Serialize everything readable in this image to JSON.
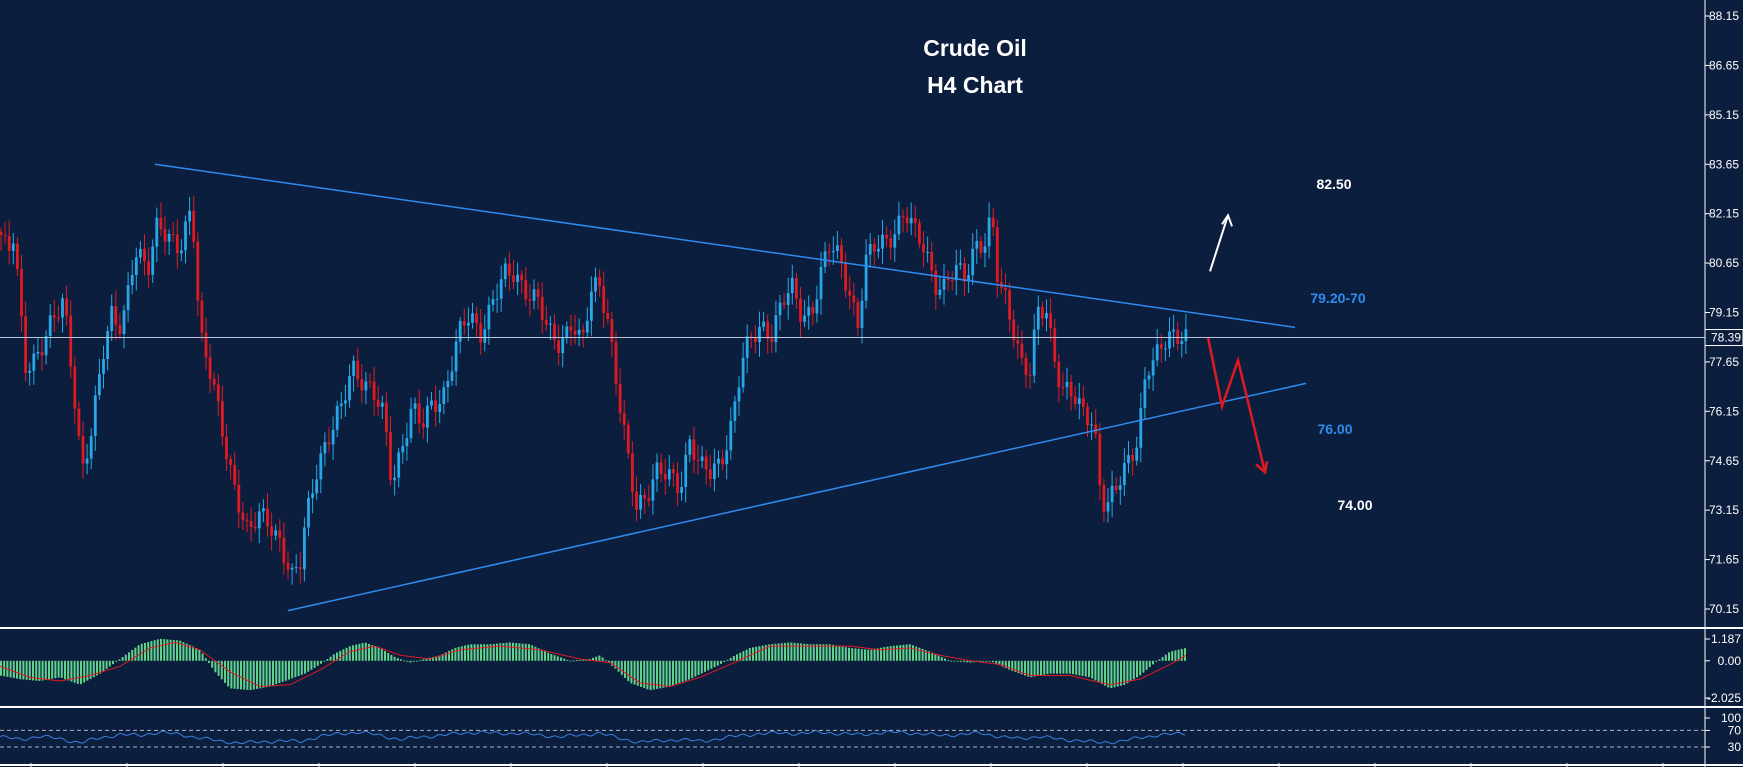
{
  "title": "Crude Oil",
  "subtitle": "H4 Chart",
  "colors": {
    "background": "#0c1e3d",
    "bull": "#26a7e8",
    "bear": "#e01a22",
    "trendline": "#2e8cf0",
    "macd_hist": "#5fd38a",
    "signal": "#e01a22",
    "rsi": "#3a7ee0",
    "axis_text": "#ffffff",
    "price_box": "#0c1e3d"
  },
  "chart_data": [
    {
      "type": "candlestick",
      "title": "Crude Oil",
      "subtitle": "H4 Chart",
      "ylim": [
        69.5,
        88.6
      ],
      "y_ticks": [
        "88.15",
        "86.65",
        "85.15",
        "83.65",
        "82.15",
        "80.65",
        "79.15",
        "77.65",
        "76.15",
        "74.65",
        "73.15",
        "71.65",
        "70.15"
      ],
      "current_price": "78.39",
      "close_path": [
        [
          0,
          81.6
        ],
        [
          8,
          80.8
        ],
        [
          14,
          81.4
        ],
        [
          25,
          77.6
        ],
        [
          40,
          78.0
        ],
        [
          55,
          78.9
        ],
        [
          64,
          79.6
        ],
        [
          72,
          77.5
        ],
        [
          82,
          74.3
        ],
        [
          92,
          75.4
        ],
        [
          102,
          77.8
        ],
        [
          112,
          79.3
        ],
        [
          122,
          78.7
        ],
        [
          135,
          80.8
        ],
        [
          148,
          80.6
        ],
        [
          158,
          82.1
        ],
        [
          168,
          81.3
        ],
        [
          180,
          80.9
        ],
        [
          192,
          82.6
        ],
        [
          200,
          78.6
        ],
        [
          210,
          77.3
        ],
        [
          220,
          75.8
        ],
        [
          228,
          74.7
        ],
        [
          238,
          73.6
        ],
        [
          248,
          72.4
        ],
        [
          260,
          72.9
        ],
        [
          270,
          72.8
        ],
        [
          280,
          72.3
        ],
        [
          292,
          71.0
        ],
        [
          300,
          71.4
        ],
        [
          306,
          72.9
        ],
        [
          318,
          74.7
        ],
        [
          330,
          75.4
        ],
        [
          342,
          76.2
        ],
        [
          352,
          77.6
        ],
        [
          362,
          77.2
        ],
        [
          372,
          76.7
        ],
        [
          384,
          75.9
        ],
        [
          392,
          74.0
        ],
        [
          402,
          75.2
        ],
        [
          412,
          76.2
        ],
        [
          422,
          75.6
        ],
        [
          432,
          76.4
        ],
        [
          445,
          76.8
        ],
        [
          458,
          78.3
        ],
        [
          470,
          79.1
        ],
        [
          480,
          78.6
        ],
        [
          492,
          79.4
        ],
        [
          505,
          80.2
        ],
        [
          515,
          80.4
        ],
        [
          526,
          79.9
        ],
        [
          538,
          79.4
        ],
        [
          548,
          78.5
        ],
        [
          560,
          78.3
        ],
        [
          572,
          78.9
        ],
        [
          582,
          78.0
        ],
        [
          592,
          79.9
        ],
        [
          600,
          80.1
        ],
        [
          608,
          79.0
        ],
        [
          618,
          76.6
        ],
        [
          628,
          74.6
        ],
        [
          636,
          73.3
        ],
        [
          646,
          73.7
        ],
        [
          656,
          74.3
        ],
        [
          668,
          74.1
        ],
        [
          680,
          73.9
        ],
        [
          690,
          75.4
        ],
        [
          700,
          74.4
        ],
        [
          710,
          74.2
        ],
        [
          720,
          74.6
        ],
        [
          732,
          75.9
        ],
        [
          742,
          77.6
        ],
        [
          752,
          78.3
        ],
        [
          762,
          78.8
        ],
        [
          772,
          78.6
        ],
        [
          782,
          79.4
        ],
        [
          792,
          79.8
        ],
        [
          802,
          79.1
        ],
        [
          812,
          79.3
        ],
        [
          822,
          80.4
        ],
        [
          830,
          81.1
        ],
        [
          840,
          80.8
        ],
        [
          850,
          79.8
        ],
        [
          858,
          78.8
        ],
        [
          866,
          80.6
        ],
        [
          875,
          81.1
        ],
        [
          885,
          81.4
        ],
        [
          895,
          81.7
        ],
        [
          905,
          82.1
        ],
        [
          915,
          81.5
        ],
        [
          925,
          81.2
        ],
        [
          935,
          80.1
        ],
        [
          945,
          79.8
        ],
        [
          955,
          80.4
        ],
        [
          965,
          80.3
        ],
        [
          975,
          81.3
        ],
        [
          985,
          81.2
        ],
        [
          992,
          81.9
        ],
        [
          998,
          80.0
        ],
        [
          1006,
          79.6
        ],
        [
          1014,
          78.7
        ],
        [
          1022,
          77.6
        ],
        [
          1030,
          77.2
        ],
        [
          1038,
          79.1
        ],
        [
          1046,
          79.3
        ],
        [
          1054,
          78.0
        ],
        [
          1062,
          76.8
        ],
        [
          1070,
          76.7
        ],
        [
          1078,
          76.2
        ],
        [
          1086,
          76.1
        ],
        [
          1094,
          75.9
        ],
        [
          1100,
          74.0
        ],
        [
          1106,
          73.1
        ],
        [
          1114,
          73.6
        ],
        [
          1122,
          74.1
        ],
        [
          1130,
          74.9
        ],
        [
          1138,
          75.4
        ],
        [
          1146,
          77.4
        ],
        [
          1154,
          77.5
        ],
        [
          1162,
          78.1
        ],
        [
          1172,
          78.6
        ],
        [
          1180,
          78.6
        ],
        [
          1186,
          78.4
        ]
      ],
      "trendlines": [
        {
          "name": "resistance",
          "from": [
            155,
            83.65
          ],
          "to": [
            1295,
            78.7
          ]
        },
        {
          "name": "support",
          "from": [
            288,
            70.1
          ],
          "to": [
            1306,
            77.0
          ]
        }
      ],
      "levels": [
        {
          "label": "82.50",
          "color": "#ffffff"
        },
        {
          "label": "79.20-70",
          "color": "#2e8cf0"
        },
        {
          "label": "76.00",
          "color": "#2e8cf0"
        },
        {
          "label": "74.00",
          "color": "#ffffff"
        }
      ],
      "projection": {
        "bullish_arrow": {
          "from": [
            1210,
            80.4
          ],
          "to": [
            1228,
            82.1
          ]
        },
        "bearish_path": [
          [
            1208,
            78.4
          ],
          [
            1222,
            76.3
          ],
          [
            1238,
            77.7
          ],
          [
            1265,
            74.3
          ]
        ]
      }
    },
    {
      "type": "bar",
      "name": "MACD",
      "ylim": [
        -2.4,
        1.6
      ],
      "y_ticks": [
        "1.187",
        "0.00",
        "-2.025"
      ],
      "histogram_path": [
        [
          0,
          -0.8
        ],
        [
          20,
          -1.0
        ],
        [
          40,
          -1.1
        ],
        [
          60,
          -0.9
        ],
        [
          80,
          -1.3
        ],
        [
          100,
          -0.7
        ],
        [
          120,
          0.1
        ],
        [
          140,
          0.9
        ],
        [
          160,
          1.2
        ],
        [
          180,
          1.1
        ],
        [
          200,
          0.6
        ],
        [
          215,
          -0.6
        ],
        [
          230,
          -1.5
        ],
        [
          250,
          -1.6
        ],
        [
          270,
          -1.4
        ],
        [
          290,
          -1.0
        ],
        [
          305,
          -0.7
        ],
        [
          320,
          -0.2
        ],
        [
          335,
          0.4
        ],
        [
          350,
          0.8
        ],
        [
          365,
          1.0
        ],
        [
          380,
          0.7
        ],
        [
          395,
          0.2
        ],
        [
          410,
          -0.1
        ],
        [
          425,
          0.1
        ],
        [
          440,
          0.3
        ],
        [
          455,
          0.7
        ],
        [
          470,
          0.9
        ],
        [
          490,
          0.9
        ],
        [
          510,
          1.0
        ],
        [
          530,
          0.9
        ],
        [
          550,
          0.4
        ],
        [
          570,
          0.0
        ],
        [
          590,
          0.1
        ],
        [
          600,
          0.3
        ],
        [
          615,
          -0.4
        ],
        [
          630,
          -1.2
        ],
        [
          650,
          -1.6
        ],
        [
          670,
          -1.4
        ],
        [
          690,
          -1.0
        ],
        [
          705,
          -0.6
        ],
        [
          720,
          -0.2
        ],
        [
          735,
          0.3
        ],
        [
          750,
          0.7
        ],
        [
          770,
          0.9
        ],
        [
          790,
          1.0
        ],
        [
          810,
          0.9
        ],
        [
          830,
          0.9
        ],
        [
          850,
          0.7
        ],
        [
          870,
          0.6
        ],
        [
          890,
          0.8
        ],
        [
          910,
          0.9
        ],
        [
          930,
          0.5
        ],
        [
          950,
          0.0
        ],
        [
          970,
          -0.1
        ],
        [
          990,
          0.0
        ],
        [
          1010,
          -0.5
        ],
        [
          1030,
          -0.9
        ],
        [
          1050,
          -0.7
        ],
        [
          1070,
          -0.7
        ],
        [
          1090,
          -0.9
        ],
        [
          1110,
          -1.5
        ],
        [
          1125,
          -1.3
        ],
        [
          1140,
          -0.8
        ],
        [
          1155,
          -0.1
        ],
        [
          1170,
          0.5
        ],
        [
          1186,
          0.7
        ]
      ],
      "signal_path": [
        [
          0,
          -0.3
        ],
        [
          30,
          -0.9
        ],
        [
          60,
          -1.1
        ],
        [
          90,
          -0.8
        ],
        [
          120,
          -0.3
        ],
        [
          150,
          0.7
        ],
        [
          175,
          1.0
        ],
        [
          200,
          0.6
        ],
        [
          230,
          -0.6
        ],
        [
          260,
          -1.4
        ],
        [
          290,
          -1.3
        ],
        [
          320,
          -0.5
        ],
        [
          350,
          0.5
        ],
        [
          375,
          0.8
        ],
        [
          400,
          0.3
        ],
        [
          430,
          0.1
        ],
        [
          460,
          0.6
        ],
        [
          500,
          0.8
        ],
        [
          540,
          0.6
        ],
        [
          580,
          0.1
        ],
        [
          610,
          -0.1
        ],
        [
          640,
          -1.2
        ],
        [
          670,
          -1.4
        ],
        [
          700,
          -0.9
        ],
        [
          730,
          -0.2
        ],
        [
          770,
          0.8
        ],
        [
          810,
          0.8
        ],
        [
          850,
          0.8
        ],
        [
          880,
          0.6
        ],
        [
          910,
          0.7
        ],
        [
          940,
          0.3
        ],
        [
          970,
          0.0
        ],
        [
          1000,
          -0.2
        ],
        [
          1030,
          -0.8
        ],
        [
          1070,
          -0.8
        ],
        [
          1110,
          -1.3
        ],
        [
          1140,
          -1.0
        ],
        [
          1170,
          -0.2
        ],
        [
          1186,
          0.3
        ]
      ]
    },
    {
      "type": "line",
      "name": "RSI",
      "ylim": [
        28,
        100
      ],
      "y_ticks": [
        "100",
        "70",
        "30"
      ],
      "series_path": [
        [
          0,
          55
        ],
        [
          20,
          48
        ],
        [
          40,
          56
        ],
        [
          60,
          50
        ],
        [
          80,
          40
        ],
        [
          100,
          52
        ],
        [
          120,
          60
        ],
        [
          140,
          58
        ],
        [
          160,
          66
        ],
        [
          180,
          60
        ],
        [
          200,
          52
        ],
        [
          220,
          44
        ],
        [
          240,
          40
        ],
        [
          260,
          42
        ],
        [
          280,
          45
        ],
        [
          300,
          43
        ],
        [
          320,
          56
        ],
        [
          340,
          62
        ],
        [
          360,
          66
        ],
        [
          380,
          58
        ],
        [
          400,
          48
        ],
        [
          420,
          54
        ],
        [
          440,
          58
        ],
        [
          460,
          63
        ],
        [
          480,
          66
        ],
        [
          500,
          62
        ],
        [
          520,
          64
        ],
        [
          540,
          58
        ],
        [
          560,
          55
        ],
        [
          580,
          58
        ],
        [
          600,
          64
        ],
        [
          620,
          50
        ],
        [
          640,
          42
        ],
        [
          660,
          45
        ],
        [
          680,
          48
        ],
        [
          700,
          44
        ],
        [
          720,
          50
        ],
        [
          740,
          58
        ],
        [
          760,
          62
        ],
        [
          780,
          64
        ],
        [
          800,
          62
        ],
        [
          820,
          66
        ],
        [
          840,
          62
        ],
        [
          860,
          60
        ],
        [
          880,
          64
        ],
        [
          900,
          66
        ],
        [
          920,
          62
        ],
        [
          940,
          58
        ],
        [
          960,
          60
        ],
        [
          980,
          64
        ],
        [
          1000,
          55
        ],
        [
          1020,
          50
        ],
        [
          1040,
          56
        ],
        [
          1060,
          48
        ],
        [
          1080,
          46
        ],
        [
          1100,
          40
        ],
        [
          1120,
          44
        ],
        [
          1140,
          52
        ],
        [
          1160,
          60
        ],
        [
          1186,
          62
        ]
      ]
    }
  ]
}
